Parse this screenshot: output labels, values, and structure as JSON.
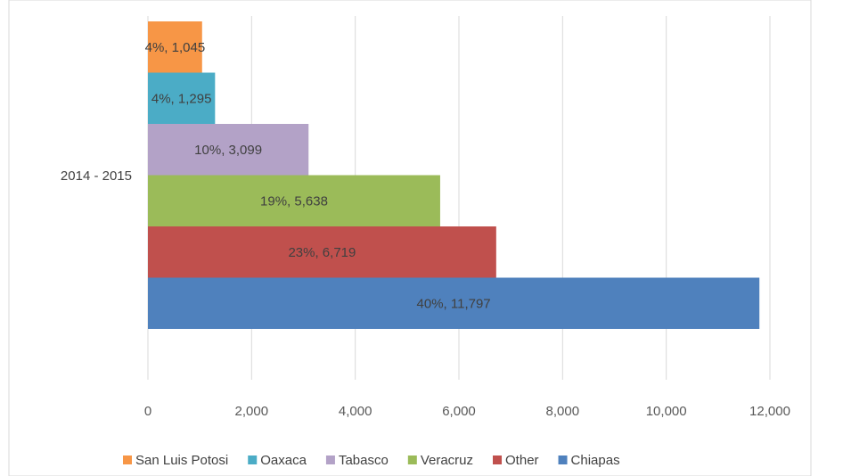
{
  "chart_data": {
    "type": "bar",
    "orientation": "horizontal",
    "categories": [
      "2014 - 2015"
    ],
    "series": [
      {
        "name": "San Luis Potosi",
        "values": [
          1045
        ],
        "label": "4%, 1,045",
        "color": "#F79646"
      },
      {
        "name": "Oaxaca",
        "values": [
          1295
        ],
        "label": "4%, 1,295",
        "color": "#4BACC6"
      },
      {
        "name": "Tabasco",
        "values": [
          3099
        ],
        "label": "10%, 3,099",
        "color": "#B3A2C7"
      },
      {
        "name": "Veracruz",
        "values": [
          5638
        ],
        "label": "19%, 5,638",
        "color": "#9BBB59"
      },
      {
        "name": "Other",
        "values": [
          6719
        ],
        "label": "23%, 6,719",
        "color": "#C0504D"
      },
      {
        "name": "Chiapas",
        "values": [
          11797
        ],
        "label": "40%, 11,797",
        "color": "#4F81BD"
      }
    ],
    "xlim": [
      0,
      12000
    ],
    "xticks": [
      0,
      2000,
      4000,
      6000,
      8000,
      10000,
      12000
    ],
    "xtick_labels": [
      "0",
      "2,000",
      "4,000",
      "6,000",
      "8,000",
      "10,000",
      "12,000"
    ],
    "grid": true,
    "legend_position": "bottom"
  }
}
